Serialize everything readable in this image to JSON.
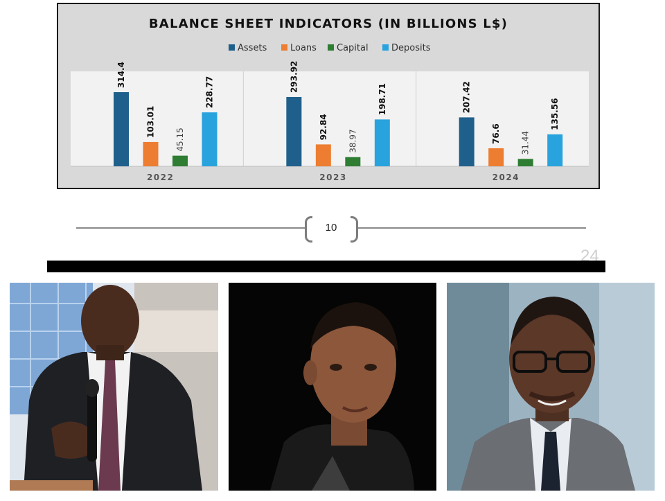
{
  "document": {
    "page_number": "10",
    "faded_page_number": "24"
  },
  "colors": {
    "assets": "#1f5f8b",
    "loans": "#ed7d31",
    "capital": "#2e7d32",
    "deposits": "#29a3dd",
    "plot_background": "#f2f2f2",
    "frame_background": "#d9d9d9"
  },
  "chart_data": {
    "type": "bar",
    "title": "BALANCE SHEET INDICATORS (IN BILLIONS L$)",
    "categories": [
      "2022",
      "2023",
      "2024"
    ],
    "series": [
      {
        "name": "Assets",
        "values": [
          314.4,
          293.92,
          207.42
        ],
        "labels": [
          "314.4",
          "293.92",
          "207.42"
        ]
      },
      {
        "name": "Loans",
        "values": [
          103.01,
          92.84,
          76.6
        ],
        "labels": [
          "103.01",
          "92.84",
          "76.6"
        ]
      },
      {
        "name": "Capital",
        "values": [
          45.15,
          38.97,
          31.44
        ],
        "labels": [
          "45.15",
          "38.97",
          "31.44"
        ]
      },
      {
        "name": "Deposits",
        "values": [
          228.77,
          198.71,
          135.56
        ],
        "labels": [
          "228.77",
          "198.71",
          "135.56"
        ]
      }
    ],
    "ylim": [
      0,
      314.4
    ],
    "grid": false,
    "legend_position": "top-center",
    "data_label_orientation": "vertical"
  },
  "photos": [
    {
      "subject": "man in dark suit speaking into microphone"
    },
    {
      "subject": "man in dark shirt on black background"
    },
    {
      "subject": "man with glasses in grey suit and tie"
    }
  ]
}
